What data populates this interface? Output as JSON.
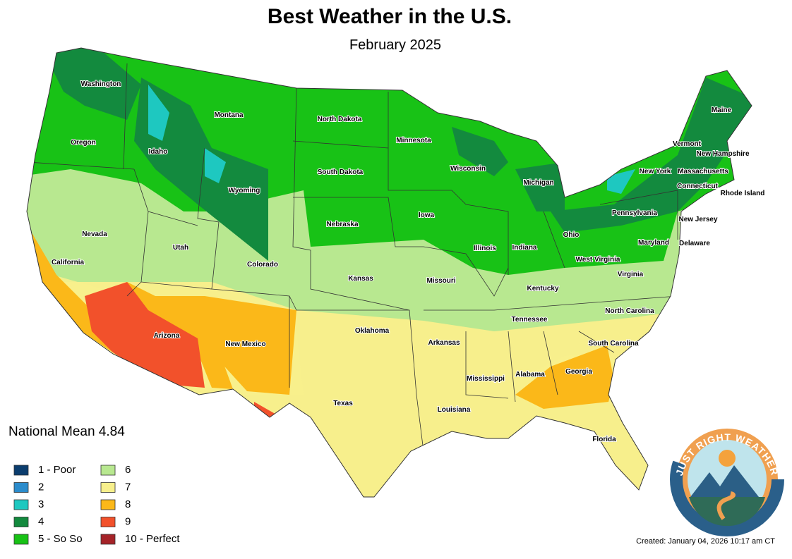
{
  "header": {
    "title": "Best Weather in the U.S.",
    "subtitle": "February 2025"
  },
  "national_mean": {
    "label": "National Mean",
    "value": "4.84"
  },
  "legend": [
    {
      "label": "1 - Poor",
      "color": "#0b3d6e"
    },
    {
      "label": "2",
      "color": "#2b8ccc"
    },
    {
      "label": "3",
      "color": "#1ec8c0"
    },
    {
      "label": "4",
      "color": "#138a3e"
    },
    {
      "label": "5 - So So",
      "color": "#18c216"
    },
    {
      "label": "6",
      "color": "#b8e890"
    },
    {
      "label": "7",
      "color": "#f7ef8c"
    },
    {
      "label": "8",
      "color": "#fbb819"
    },
    {
      "label": "9",
      "color": "#f2512b"
    },
    {
      "label": "10 - Perfect",
      "color": "#a52328"
    }
  ],
  "states": [
    "Washington",
    "Oregon",
    "Idaho",
    "Montana",
    "North Dakota",
    "Minnesota",
    "South Dakota",
    "Wyoming",
    "Wisconsin",
    "Michigan",
    "Nevada",
    "California",
    "Utah",
    "Colorado",
    "Nebraska",
    "Iowa",
    "Illinois",
    "Indiana",
    "Ohio",
    "Kansas",
    "Missouri",
    "Kentucky",
    "West Virginia",
    "Virginia",
    "Maryland",
    "Delaware",
    "New Jersey",
    "Pennsylvania",
    "New York",
    "Connecticut",
    "Rhode Island",
    "Massachusetts",
    "New Hampshire",
    "Vermont",
    "Maine",
    "Arizona",
    "New Mexico",
    "Oklahoma",
    "Arkansas",
    "Tennessee",
    "North Carolina",
    "South Carolina",
    "Georgia",
    "Alabama",
    "Mississippi",
    "Louisiana",
    "Texas",
    "Florida"
  ],
  "logo": {
    "text": "JUST RIGHT WEATHER"
  },
  "footer": {
    "created": "Created: January 04, 2026 10:17 am CT"
  }
}
